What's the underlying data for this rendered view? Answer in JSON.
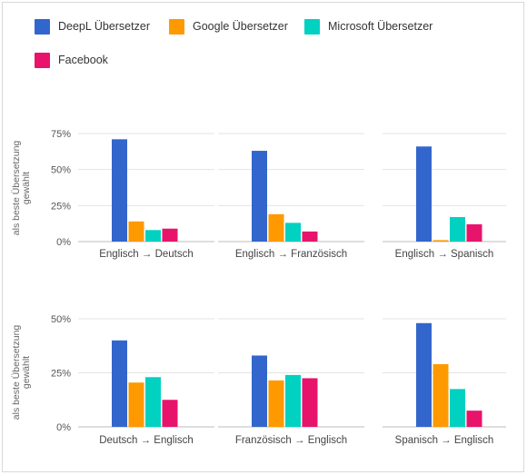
{
  "chart_data": {
    "type": "bar",
    "legend_position": "top-left",
    "series": [
      {
        "name": "DeepL Übersetzer",
        "color": "#3366cc"
      },
      {
        "name": "Google Übersetzer",
        "color": "#ff9900"
      },
      {
        "name": "Microsoft Übersetzer",
        "color": "#00d1c1"
      },
      {
        "name": "Facebook",
        "color": "#e8146b"
      }
    ],
    "rows": [
      {
        "ylabel": "als beste Übersetzung gewählt",
        "ylim": [
          0,
          75
        ],
        "ticks": [
          "75%",
          "50%",
          "25%",
          "0%"
        ],
        "tick_values": [
          75,
          50,
          25,
          0
        ],
        "panels": [
          {
            "label": "Englisch → Deutsch",
            "values": [
              71,
              14,
              8,
              9
            ]
          },
          {
            "label": "Englisch → Französisch",
            "values": [
              63,
              19,
              13,
              7
            ]
          },
          {
            "label": "Englisch → Spanisch",
            "values": [
              66,
              1,
              17,
              12
            ]
          }
        ]
      },
      {
        "ylabel": "als beste Übersetzung gewählt",
        "ylim": [
          0,
          50
        ],
        "ticks": [
          "50%",
          "25%",
          "0%"
        ],
        "tick_values": [
          50,
          25,
          0
        ],
        "panels": [
          {
            "label": "Deutsch → Englisch",
            "values": [
              40,
              20.5,
              23,
              12.5
            ]
          },
          {
            "label": "Französisch → Englisch",
            "values": [
              33,
              21.5,
              24,
              22.5
            ]
          },
          {
            "label": "Spanisch → Englisch",
            "values": [
              48,
              29,
              17.5,
              7.5
            ]
          }
        ]
      }
    ]
  }
}
